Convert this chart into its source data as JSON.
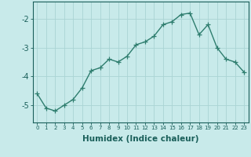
{
  "x": [
    0,
    1,
    2,
    3,
    4,
    5,
    6,
    7,
    8,
    9,
    10,
    11,
    12,
    13,
    14,
    15,
    16,
    17,
    18,
    19,
    20,
    21,
    22,
    23
  ],
  "y": [
    -4.6,
    -5.1,
    -5.2,
    -5.0,
    -4.8,
    -4.4,
    -3.8,
    -3.7,
    -3.4,
    -3.5,
    -3.3,
    -2.9,
    -2.8,
    -2.6,
    -2.2,
    -2.1,
    -1.85,
    -1.8,
    -2.55,
    -2.2,
    -3.0,
    -3.4,
    -3.5,
    -3.85
  ],
  "xlabel": "Humidex (Indice chaleur)",
  "xlim": [
    -0.5,
    23.5
  ],
  "ylim": [
    -5.6,
    -1.4
  ],
  "yticks": [
    -5,
    -4,
    -3,
    -2
  ],
  "xticks": [
    0,
    1,
    2,
    3,
    4,
    5,
    6,
    7,
    8,
    9,
    10,
    11,
    12,
    13,
    14,
    15,
    16,
    17,
    18,
    19,
    20,
    21,
    22,
    23
  ],
  "line_color": "#2e7d6e",
  "bg_color": "#c8eaea",
  "grid_color": "#aad4d4",
  "tick_color": "#1a5f5a",
  "label_color": "#1a5f5a",
  "line_width": 1.0,
  "marker_size": 4.5,
  "xlabel_fontsize": 7.5,
  "xtick_fontsize": 5.0,
  "ytick_fontsize": 7.0
}
